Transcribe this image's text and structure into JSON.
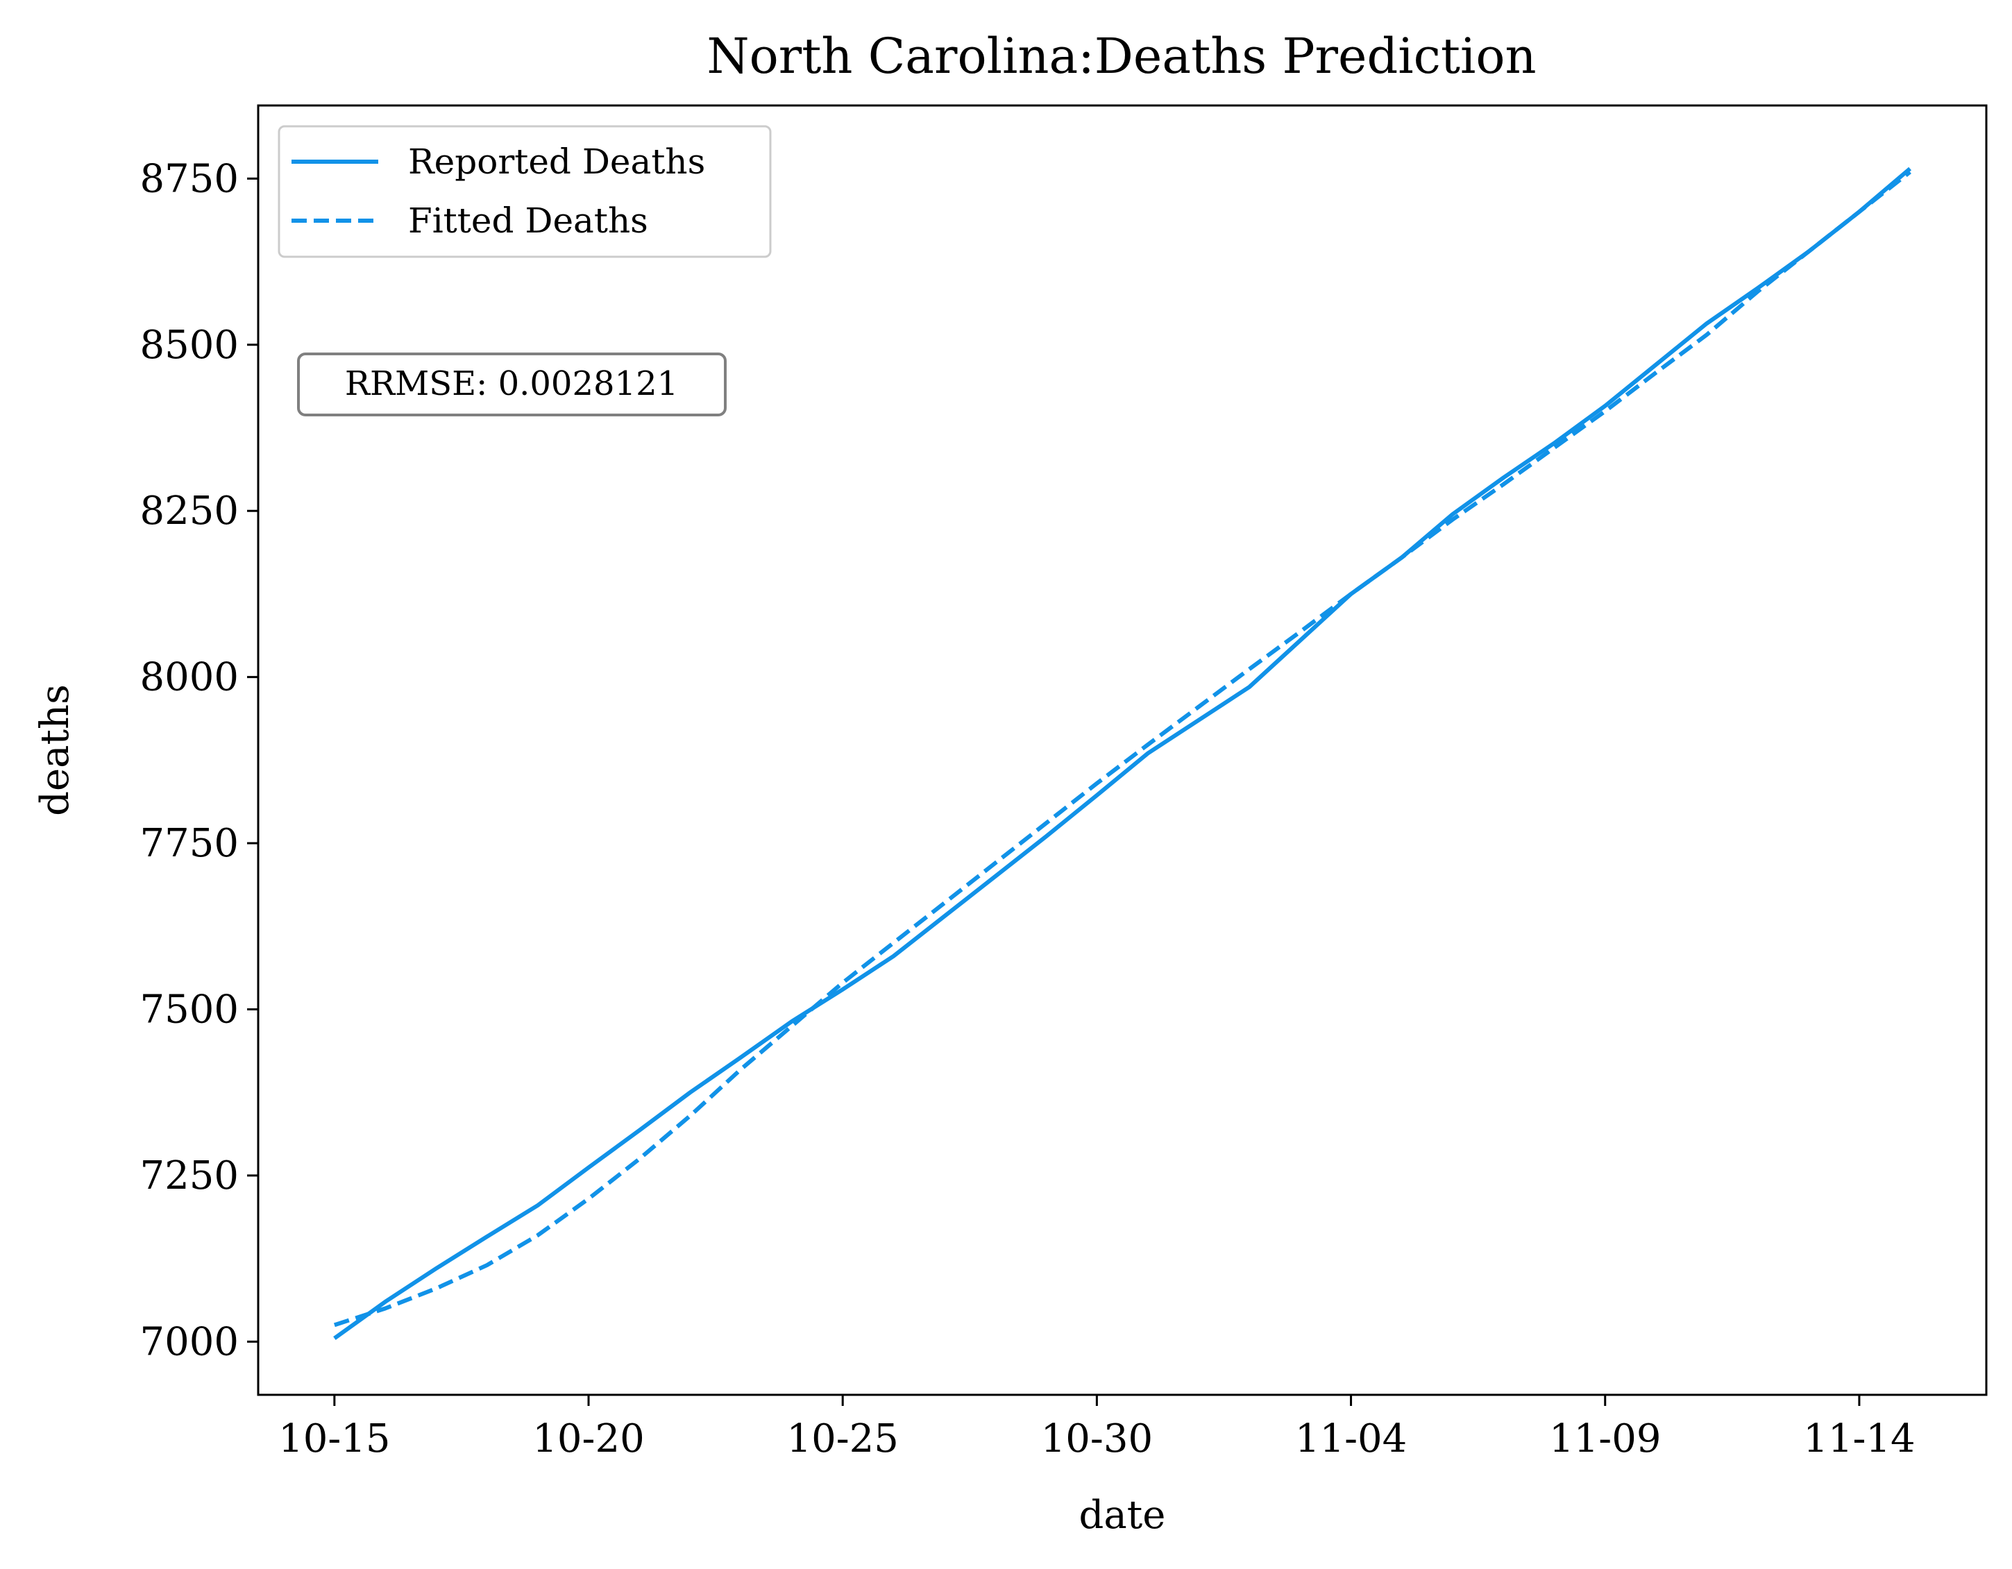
{
  "chart_data": {
    "type": "line",
    "title": "North Carolina:Deaths Prediction",
    "xlabel": "date",
    "ylabel": "deaths",
    "x_tick_labels": [
      "10-15",
      "10-20",
      "10-25",
      "10-30",
      "11-04",
      "11-09",
      "11-14"
    ],
    "x_tick_days": [
      0,
      5,
      10,
      15,
      20,
      25,
      30
    ],
    "xlim": [
      -1.5,
      32.5
    ],
    "y_ticks": [
      7000,
      7250,
      7500,
      7750,
      8000,
      8250,
      8500,
      8750
    ],
    "y_tick_labels": [
      "7000",
      "7250",
      "7500",
      "7750",
      "8000",
      "8250",
      "8500",
      "8750"
    ],
    "ylim": [
      6920,
      8860
    ],
    "grid": false,
    "legend_position": "top-left",
    "series": [
      {
        "name": "Reported Deaths",
        "style": "solid",
        "color": "#1192e8",
        "x_days": [
          0,
          1,
          2,
          3,
          4,
          5,
          6,
          7,
          8,
          9,
          10,
          11,
          12,
          13,
          14,
          15,
          16,
          17,
          18,
          19,
          20,
          21,
          22,
          23,
          24,
          25,
          26,
          27,
          28,
          29,
          30,
          31
        ],
        "values": [
          7005,
          7060,
          7110,
          7158,
          7205,
          7262,
          7318,
          7375,
          7428,
          7482,
          7530,
          7580,
          7640,
          7700,
          7760,
          7822,
          7885,
          7935,
          7985,
          8055,
          8125,
          8180,
          8245,
          8300,
          8352,
          8408,
          8470,
          8532,
          8585,
          8640,
          8700,
          8765
        ]
      },
      {
        "name": "Fitted Deaths",
        "style": "dashed",
        "color": "#1192e8",
        "x_days": [
          0,
          1,
          2,
          3,
          4,
          5,
          6,
          7,
          8,
          9,
          10,
          11,
          12,
          13,
          14,
          15,
          16,
          17,
          18,
          19,
          20,
          21,
          22,
          23,
          24,
          25,
          26,
          27,
          28,
          29,
          30,
          31
        ],
        "values": [
          7025,
          7050,
          7080,
          7115,
          7160,
          7215,
          7275,
          7340,
          7410,
          7475,
          7540,
          7600,
          7660,
          7720,
          7780,
          7840,
          7898,
          7955,
          8012,
          8068,
          8125,
          8180,
          8237,
          8290,
          8345,
          8400,
          8458,
          8515,
          8580,
          8640,
          8700,
          8760
        ]
      }
    ],
    "annotation": "RRMSE: 0.0028121"
  }
}
